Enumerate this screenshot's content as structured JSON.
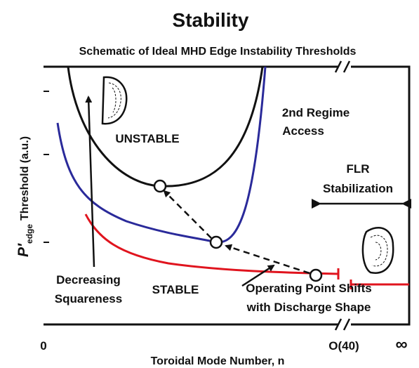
{
  "title": "Stability",
  "subtitle": "Schematic of Ideal MHD Edge Instability Thresholds",
  "y_axis": {
    "symbol": "P′",
    "subscript": "edge",
    "label": "Threshold (a.u.)"
  },
  "x_axis": {
    "label": "Toroidal Mode Number, n",
    "ticks": [
      "0",
      "O(40)",
      "∞"
    ]
  },
  "regions": {
    "unstable": "UNSTABLE",
    "stable": "STABLE",
    "second_regime": [
      "2nd Regime",
      "Access"
    ],
    "flr": [
      "FLR",
      "Stabilization"
    ]
  },
  "annotations": {
    "squareness": [
      "Decreasing",
      "Squareness"
    ],
    "operating_point": [
      "Operating Point Shifts",
      "with Discharge Shape"
    ]
  }
}
